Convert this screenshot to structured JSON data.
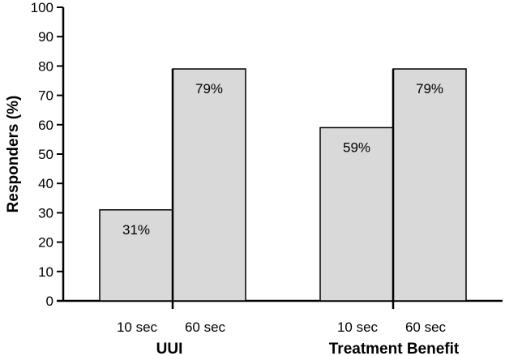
{
  "chart_data": {
    "type": "bar",
    "title": "",
    "ylabel": "Responders (%)",
    "xlabel": "",
    "ylim": [
      0,
      100
    ],
    "yticks": [
      0,
      10,
      20,
      30,
      40,
      50,
      60,
      70,
      80,
      90,
      100
    ],
    "grid": false,
    "legend": "none",
    "groups": [
      {
        "name": "UUI",
        "categories": [
          "10 sec",
          "60 sec"
        ],
        "values": [
          31,
          79
        ],
        "labels": [
          "31%",
          "79%"
        ]
      },
      {
        "name": "Treatment Benefit",
        "categories": [
          "10 sec",
          "60 sec"
        ],
        "values": [
          59,
          79
        ],
        "labels": [
          "59%",
          "79%"
        ]
      }
    ],
    "colors": {
      "bar_fill": "#d9d9d9",
      "bar_stroke": "#000000",
      "axis": "#000000"
    }
  }
}
